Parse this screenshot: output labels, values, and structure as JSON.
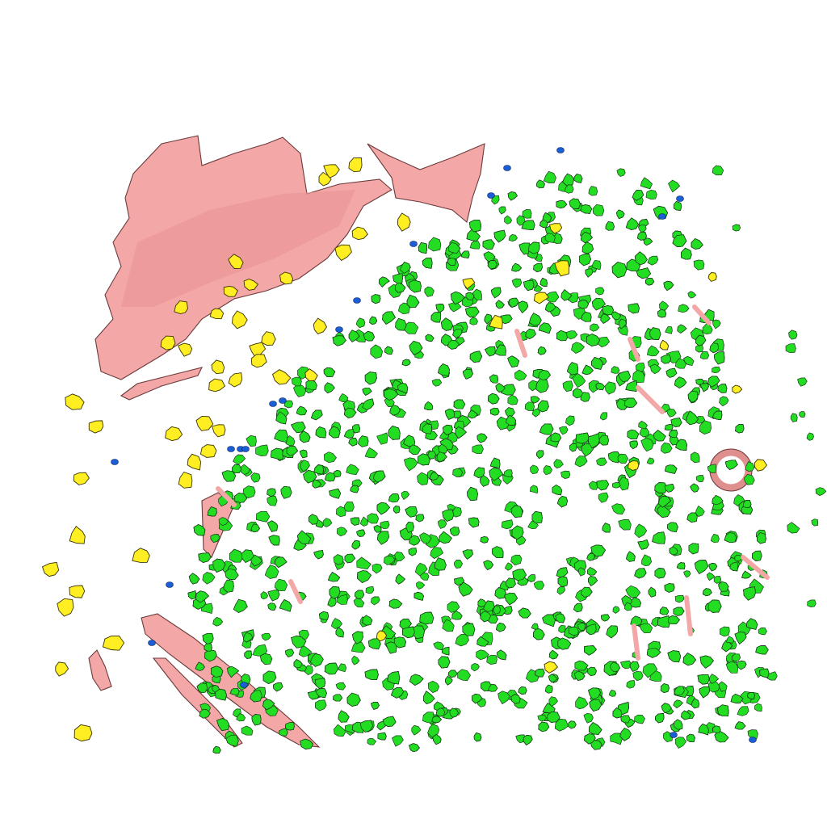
{
  "scene": {
    "background": "#ffffff",
    "colors": {
      "green": "#22dd22",
      "yellow": "#ffee22",
      "pink": "#f4a7a7",
      "blue": "#1a5fd6"
    },
    "objects": [
      {
        "name": "green-particle-cloud",
        "color": "green"
      },
      {
        "name": "yellow-particles",
        "color": "yellow"
      },
      {
        "name": "pink-membrane-sheets",
        "color": "pink"
      },
      {
        "name": "blue-particles",
        "color": "blue"
      }
    ]
  }
}
